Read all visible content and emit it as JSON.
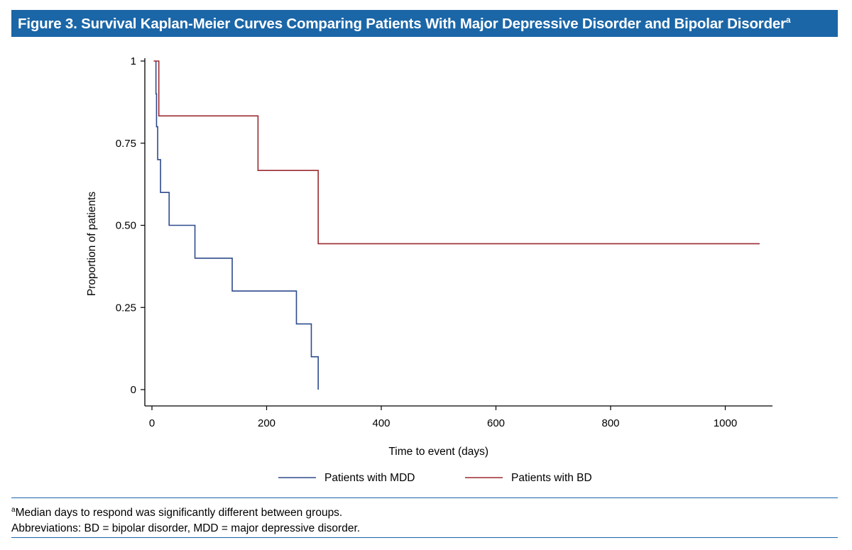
{
  "figure": {
    "title": "Figure 3. Survival Kaplan-Meier Curves Comparing Patients With Major Depressive Disorder and Bipolar Disorder",
    "title_superscript": "a"
  },
  "colors": {
    "header_bg": "#1b66a7",
    "mdd": "#2e4a8c",
    "bd": "#9b2a30"
  },
  "chart_data": {
    "type": "line",
    "step": true,
    "xlabel": "Time to event (days)",
    "ylabel": "Proportion of patients",
    "xlim": [
      0,
      1080
    ],
    "ylim": [
      0,
      1
    ],
    "xticks": [
      0,
      200,
      400,
      600,
      800,
      1000
    ],
    "xtick_labels": [
      "0",
      "200",
      "400",
      "600",
      "800",
      "1000"
    ],
    "yticks": [
      0,
      0.25,
      0.5,
      0.75,
      1
    ],
    "ytick_labels": [
      "0",
      "0.25",
      "0.50",
      "0.75",
      "1"
    ],
    "grid": false,
    "legend_position": "bottom",
    "series": [
      {
        "name": "Patients with MDD",
        "color": "#2e4a8c",
        "x": [
          7,
          7,
          8,
          10,
          15,
          30,
          75,
          140,
          252,
          278,
          290
        ],
        "y": [
          1,
          0.9,
          0.8,
          0.7,
          0.6,
          0.5,
          0.4,
          0.3,
          0.2,
          0.1,
          0
        ]
      },
      {
        "name": "Patients with BD",
        "color": "#9b2a30",
        "x": [
          3,
          12,
          185,
          290,
          1060
        ],
        "y": [
          1,
          0.833,
          0.667,
          0.444,
          0.444
        ]
      }
    ]
  },
  "footnotes": {
    "note_a_marker": "a",
    "note_a": "Median days to respond was significantly different between groups.",
    "abbreviations": "Abbreviations: BD = bipolar disorder, MDD = major depressive disorder."
  }
}
